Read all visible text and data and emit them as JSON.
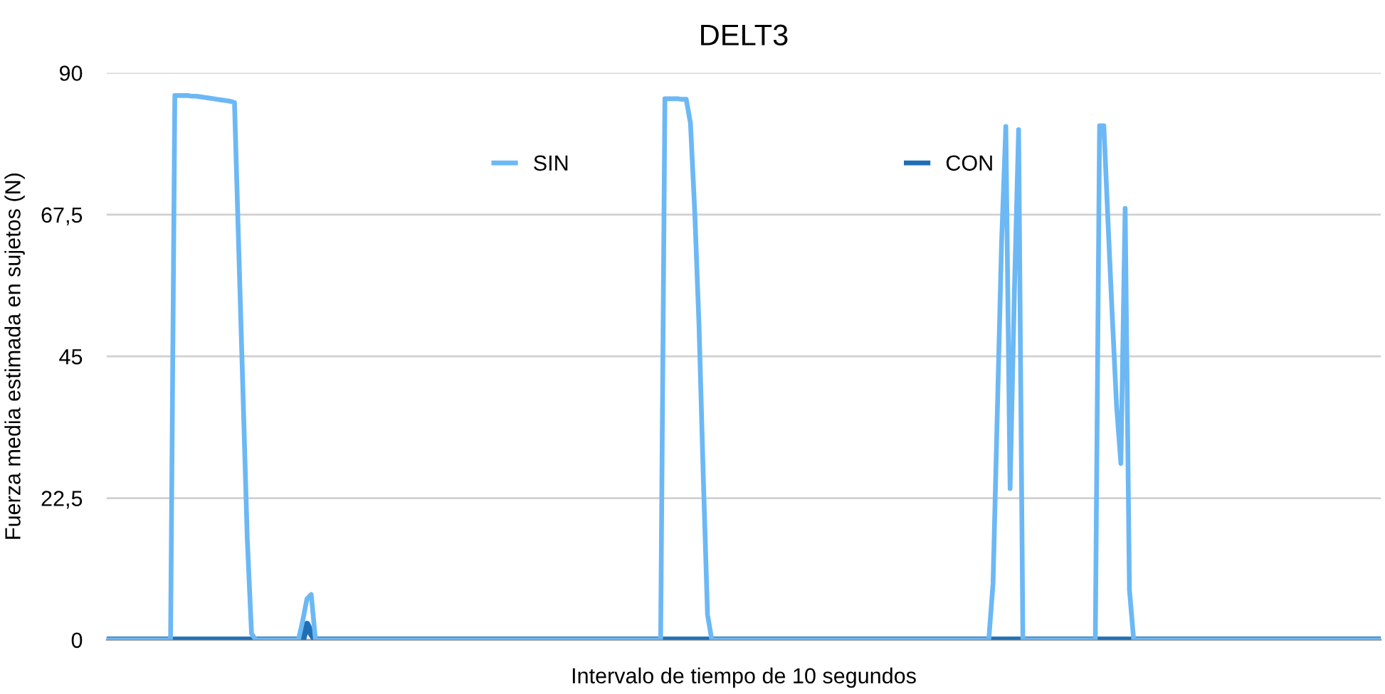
{
  "chart_data": {
    "type": "line",
    "title": "DELT3",
    "xlabel": "Intervalo de tiempo de 10 segundos",
    "ylabel": "Fuerza media estimada en sujetos (N)",
    "categories": [
      null,
      null,
      null,
      null,
      null,
      null,
      null,
      null,
      null,
      null,
      null,
      null,
      null,
      null,
      null,
      null,
      null,
      null,
      null,
      null,
      null,
      null,
      null,
      null,
      null,
      null,
      null,
      null,
      null,
      null,
      null,
      null,
      null,
      null,
      null,
      null,
      null,
      null,
      null,
      null,
      null,
      null,
      null,
      null,
      null,
      null,
      null,
      null,
      null,
      null,
      null,
      null,
      null,
      null,
      null,
      null,
      null,
      null,
      null,
      null,
      null,
      null,
      null,
      null,
      null,
      null,
      null,
      null,
      null,
      null,
      null,
      null,
      null,
      null,
      null,
      null,
      null,
      null,
      null,
      null,
      null,
      null,
      null,
      null,
      null,
      null,
      null,
      null,
      null,
      null,
      null,
      null,
      null,
      null,
      null,
      null,
      null,
      null,
      null,
      null,
      null,
      null,
      null,
      null,
      null,
      null,
      null,
      null,
      null,
      null,
      null,
      null,
      null,
      null,
      null,
      null,
      null,
      null,
      null,
      null,
      null,
      null,
      null,
      null,
      null,
      null,
      null,
      null,
      null,
      null,
      null,
      null,
      null,
      null,
      null,
      null,
      null,
      null,
      null,
      null,
      null,
      null,
      null,
      null,
      null,
      null,
      null,
      null,
      null,
      null,
      null,
      null,
      null,
      null,
      null,
      null,
      null,
      null,
      null,
      null,
      null,
      null,
      null,
      null,
      null,
      null,
      null,
      null,
      null,
      null,
      null,
      null,
      null,
      null,
      null,
      null,
      null,
      null,
      null,
      null,
      null,
      null,
      null,
      null,
      null,
      null,
      null,
      null,
      null,
      null,
      null,
      null,
      null,
      null,
      null,
      null,
      null,
      null,
      null,
      null,
      null,
      null,
      null,
      null,
      null,
      null,
      null,
      null,
      null,
      null,
      null,
      null,
      null,
      null,
      null,
      null,
      null,
      null,
      null,
      null,
      null,
      null,
      null,
      null,
      null,
      null,
      null,
      null,
      null,
      null,
      null,
      null,
      null,
      null,
      null,
      null,
      null,
      null,
      null,
      null,
      null,
      null,
      null,
      null,
      null,
      null,
      null,
      null,
      null,
      null,
      null,
      null,
      null,
      null,
      null,
      null,
      null,
      null,
      null,
      null,
      null,
      null,
      null,
      null,
      null,
      null,
      null,
      null,
      null,
      null,
      null,
      null,
      null,
      null,
      null,
      null,
      null,
      null,
      null,
      null,
      null,
      null,
      null,
      null,
      null,
      null,
      null,
      null,
      null,
      null,
      null,
      null,
      null,
      null,
      null,
      null,
      null,
      null,
      null,
      null
    ],
    "ylim": [
      0,
      90
    ],
    "yticks": [
      0,
      {
        "value": 22.5,
        "label": "22,5"
      },
      45,
      {
        "value": 67.5,
        "label": "67,5"
      },
      90
    ],
    "grid": "y",
    "legend": "top",
    "tick_labels": "y",
    "marker": "none",
    "line_style": "solid",
    "series": [
      {
        "name": "CON",
        "color": "#1f6fb5",
        "values": [
          0,
          0,
          0,
          0,
          0,
          0,
          0,
          0,
          0,
          0,
          0,
          0,
          0,
          0,
          0,
          0,
          0,
          0,
          0,
          0,
          0,
          0,
          0,
          0,
          0,
          0,
          0,
          0,
          0,
          0,
          0,
          0,
          0,
          0,
          0,
          0,
          0,
          0,
          0,
          0,
          0,
          0,
          0,
          0,
          0,
          0,
          0,
          2.5,
          1,
          0,
          0,
          0,
          0,
          0,
          0,
          0,
          0,
          0,
          0,
          0,
          0,
          0,
          0,
          0,
          0,
          0,
          0,
          0,
          0,
          0,
          0,
          0,
          0,
          0,
          0,
          0,
          0,
          0,
          0,
          0,
          0,
          0,
          0,
          0,
          0,
          0,
          0,
          0,
          0,
          0,
          0,
          0,
          0,
          0,
          0,
          0,
          0,
          0,
          0,
          0,
          0,
          0,
          0,
          0,
          0,
          0,
          0,
          0,
          0,
          0,
          0,
          0,
          0,
          0,
          0,
          0,
          0,
          0,
          0,
          0,
          0,
          0,
          0,
          0,
          0,
          0,
          0,
          0,
          0,
          0,
          0,
          0,
          0,
          0,
          0,
          0,
          0,
          0,
          0,
          0,
          0,
          0,
          0,
          0,
          0,
          0,
          0,
          0,
          0,
          0,
          0,
          0,
          0,
          0,
          0,
          0,
          0,
          0,
          0,
          0,
          0,
          0,
          0,
          0,
          0,
          0,
          0,
          0,
          0,
          0,
          0,
          0,
          0,
          0,
          0,
          0,
          0,
          0,
          0,
          0,
          0,
          0,
          0,
          0,
          0,
          0,
          0,
          0,
          0,
          0,
          0,
          0,
          0,
          0,
          0,
          0,
          0,
          0,
          0,
          0,
          0,
          0,
          0,
          0,
          0,
          0,
          0,
          0,
          0,
          0,
          0,
          0,
          0,
          0,
          0,
          0,
          0,
          0,
          0,
          0,
          0,
          0,
          0,
          0,
          0,
          0,
          0,
          0,
          0,
          0,
          0,
          0,
          0,
          0,
          0,
          0,
          0,
          0,
          0,
          0,
          0,
          0,
          0,
          0,
          0,
          0,
          0,
          0,
          0,
          0,
          0,
          0,
          0,
          0,
          0,
          0,
          0,
          0,
          0,
          0,
          0,
          0,
          0,
          0,
          0,
          0,
          0,
          0,
          0,
          0,
          0,
          0,
          0,
          0,
          0,
          0,
          0,
          0,
          0,
          0,
          0,
          0,
          0,
          0,
          0,
          0,
          0,
          0,
          0,
          0,
          0,
          0,
          0,
          0,
          0,
          0,
          0,
          0,
          0,
          0
        ]
      },
      {
        "name": "SIN",
        "color": "#6cb8f5",
        "values": [
          0,
          0,
          0,
          0,
          0,
          0,
          0,
          0,
          0,
          0,
          0,
          0,
          0,
          0,
          0,
          0,
          86.4,
          86.4,
          86.4,
          86.4,
          86.3,
          86.3,
          86.2,
          86.1,
          86.0,
          85.9,
          85.8,
          85.7,
          85.6,
          85.5,
          85.3,
          62,
          39,
          16,
          1,
          0,
          0,
          0,
          0,
          0,
          0,
          0,
          0,
          0,
          0,
          0,
          3,
          6.5,
          7.2,
          0,
          0,
          0,
          0,
          0,
          0,
          0,
          0,
          0,
          0,
          0,
          0,
          0,
          0,
          0,
          0,
          0,
          0,
          0,
          0,
          0,
          0,
          0,
          0,
          0,
          0,
          0,
          0,
          0,
          0,
          0,
          0,
          0,
          0,
          0,
          0,
          0,
          0,
          0,
          0,
          0,
          0,
          0,
          0,
          0,
          0,
          0,
          0,
          0,
          0,
          0,
          0,
          0,
          0,
          0,
          0,
          0,
          0,
          0,
          0,
          0,
          0,
          0,
          0,
          0,
          0,
          0,
          0,
          0,
          0,
          0,
          0,
          0,
          0,
          0,
          0,
          0,
          0,
          0,
          0,
          0,
          0,
          85.9,
          85.9,
          85.9,
          85.9,
          85.8,
          85.8,
          82,
          68,
          50,
          26,
          4,
          0,
          0,
          0,
          0,
          0,
          0,
          0,
          0,
          0,
          0,
          0,
          0,
          0,
          0,
          0,
          0,
          0,
          0,
          0,
          0,
          0,
          0,
          0,
          0,
          0,
          0,
          0,
          0,
          0,
          0,
          0,
          0,
          0,
          0,
          0,
          0,
          0,
          0,
          0,
          0,
          0,
          0,
          0,
          0,
          0,
          0,
          0,
          0,
          0,
          0,
          0,
          0,
          0,
          0,
          0,
          0,
          0,
          0,
          0,
          0,
          0,
          0,
          0,
          0,
          0,
          0,
          9,
          36,
          63,
          81.5,
          24,
          55,
          81,
          0,
          0,
          0,
          0,
          0,
          0,
          0,
          0,
          0,
          0,
          0,
          0,
          0,
          0,
          0,
          0,
          0,
          0,
          81.6,
          81.6,
          66,
          51,
          37,
          28,
          68.5,
          8,
          0,
          0,
          0,
          0,
          0,
          0,
          0,
          0,
          0,
          0,
          0,
          0,
          0,
          0,
          0,
          0,
          0,
          0,
          0,
          0,
          0,
          0,
          0,
          0,
          0,
          0,
          0,
          0,
          0,
          0,
          0,
          0,
          0,
          0,
          0,
          0,
          0,
          0,
          0,
          0,
          0,
          0,
          0,
          0,
          0,
          0,
          0,
          0,
          0,
          0,
          0,
          0,
          0,
          0,
          0,
          0,
          0,
          0,
          0
        ]
      }
    ]
  }
}
